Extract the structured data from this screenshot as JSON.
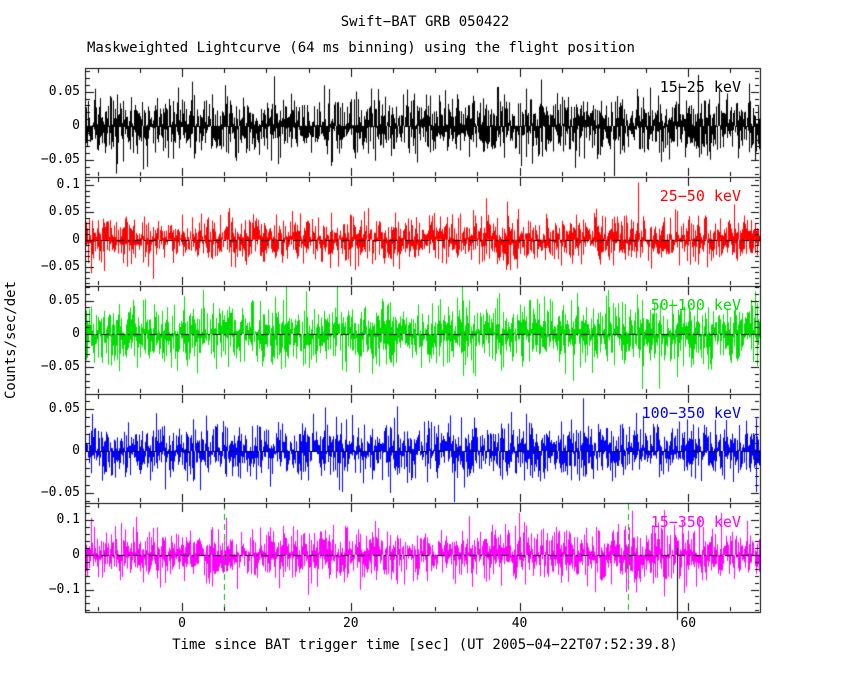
{
  "chart_data": {
    "type": "line",
    "title": "Swift−BAT GRB 050422",
    "subtitle": "Maskweighted Lightcurve (64 ms binning) using the flight position",
    "xlabel": "Time since BAT trigger time [sec] (UT 2005−04−22T07:52:39.8)",
    "ylabel": "Counts/sec/det",
    "trigger_time_ut": "2005-04-22T07:52:39.8",
    "binning": "64 ms",
    "x_range_sec": [
      -11.5,
      68.5
    ],
    "xticks": [
      0,
      20,
      40,
      60
    ],
    "x_minor_step": 5,
    "grid": false,
    "panels": [
      {
        "label": "15−25 keV",
        "color": "#000000",
        "ylim": [
          -0.075,
          0.085
        ],
        "yticks": [
          0.05,
          0,
          -0.05
        ],
        "tick_step": 0.05,
        "noise_sigma": 0.021,
        "spikes": [
          {
            "t": 61.2,
            "y": 0.075
          },
          {
            "t": -7.8,
            "y": -0.07
          },
          {
            "t": 42.5,
            "y": 0.068
          }
        ]
      },
      {
        "label": "25−50 keV",
        "color": "#ff0000",
        "ylim": [
          -0.085,
          0.115
        ],
        "yticks": [
          0.1,
          0.05,
          0,
          -0.05
        ],
        "tick_step": 0.05,
        "noise_sigma": 0.02,
        "spikes": [
          {
            "t": 54.0,
            "y": 0.105
          },
          {
            "t": 38.5,
            "y": 0.07
          },
          {
            "t": -3.5,
            "y": -0.072
          }
        ]
      },
      {
        "label": "50−100 keV",
        "color": "#00dd00",
        "ylim": [
          -0.09,
          0.072
        ],
        "yticks": [
          0.05,
          0,
          -0.05
        ],
        "tick_step": 0.05,
        "noise_sigma": 0.022,
        "spikes": [
          {
            "t": 50.5,
            "y": 0.066
          },
          {
            "t": 56.5,
            "y": -0.082
          }
        ]
      },
      {
        "label": "100−350 keV",
        "color": "#0000ff",
        "ylim": [
          -0.062,
          0.068
        ],
        "yticks": [
          0.05,
          0,
          -0.05
        ],
        "tick_step": 0.05,
        "noise_sigma": 0.015,
        "spikes": [
          {
            "t": 47.5,
            "y": 0.063
          },
          {
            "t": 17.0,
            "y": 0.052
          }
        ]
      },
      {
        "label": "15−350 keV",
        "color": "#ff00ff",
        "ylim": [
          -0.165,
          0.15
        ],
        "yticks": [
          0.1,
          0,
          -0.1
        ],
        "tick_step": 0.1,
        "noise_sigma": 0.034,
        "bump": {
          "t0": 53.5,
          "width": 5.0,
          "amp": 0.35
        },
        "spikes": [
          {
            "t": 53.3,
            "y": 0.128
          },
          {
            "t": 5.2,
            "y": 0.108
          },
          {
            "t": 34.0,
            "y": 0.112
          },
          {
            "t": 59.5,
            "y": -0.11
          }
        ]
      }
    ],
    "zero_line": {
      "style": "dash-dot",
      "color": "#000000"
    },
    "markers": {
      "green_dashed_vlines_t": [
        5.0,
        52.9
      ],
      "green_dashed_color": "#00bb00",
      "black_solid_vline_t": 58.7
    }
  }
}
